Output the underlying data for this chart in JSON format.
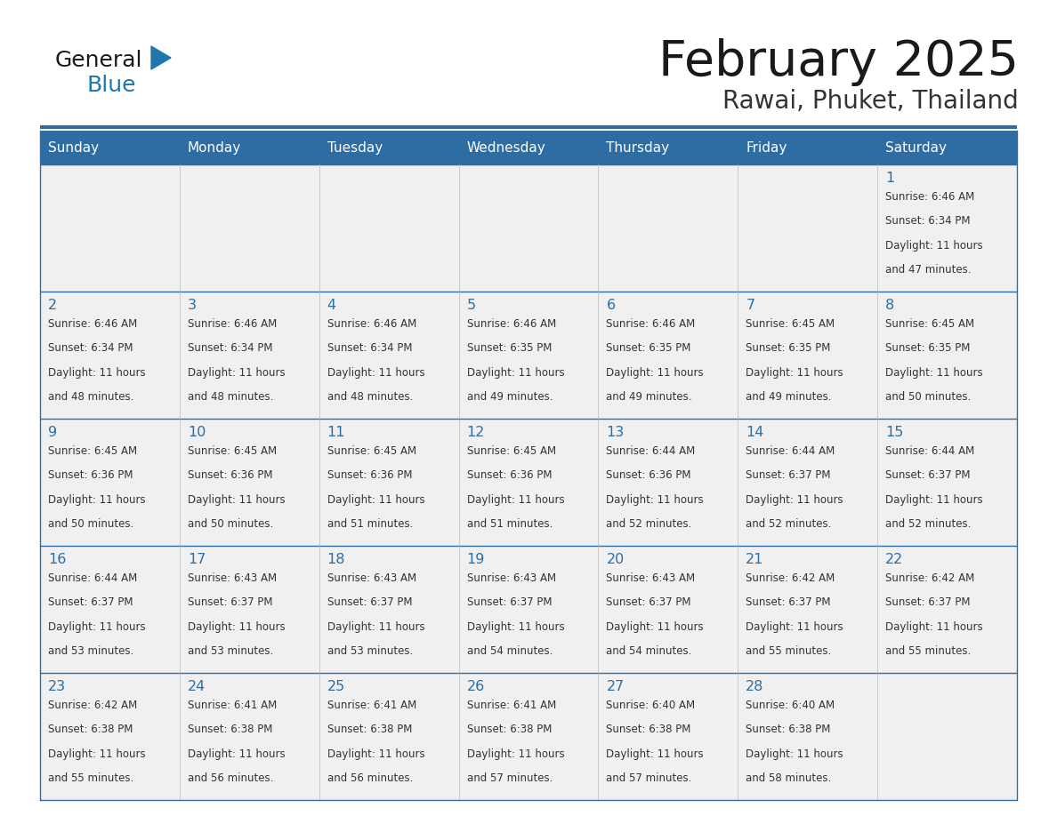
{
  "title": "February 2025",
  "subtitle": "Rawai, Phuket, Thailand",
  "header_bg": "#2E6DA4",
  "header_text_color": "#FFFFFF",
  "cell_bg": "#F0F0F0",
  "border_color": "#2E6DA4",
  "days_of_week": [
    "Sunday",
    "Monday",
    "Tuesday",
    "Wednesday",
    "Thursday",
    "Friday",
    "Saturday"
  ],
  "title_color": "#1a1a1a",
  "subtitle_color": "#333333",
  "day_num_color": "#2E6DA4",
  "cell_text_color": "#333333",
  "logo_text_color": "#1a1a1a",
  "logo_blue_color": "#1a7abf",
  "calendar": [
    [
      null,
      null,
      null,
      null,
      null,
      null,
      {
        "day": 1,
        "sunrise": "6:46 AM",
        "sunset": "6:34 PM",
        "daylight": "11 hours and 47 minutes."
      }
    ],
    [
      {
        "day": 2,
        "sunrise": "6:46 AM",
        "sunset": "6:34 PM",
        "daylight": "11 hours and 48 minutes."
      },
      {
        "day": 3,
        "sunrise": "6:46 AM",
        "sunset": "6:34 PM",
        "daylight": "11 hours and 48 minutes."
      },
      {
        "day": 4,
        "sunrise": "6:46 AM",
        "sunset": "6:34 PM",
        "daylight": "11 hours and 48 minutes."
      },
      {
        "day": 5,
        "sunrise": "6:46 AM",
        "sunset": "6:35 PM",
        "daylight": "11 hours and 49 minutes."
      },
      {
        "day": 6,
        "sunrise": "6:46 AM",
        "sunset": "6:35 PM",
        "daylight": "11 hours and 49 minutes."
      },
      {
        "day": 7,
        "sunrise": "6:45 AM",
        "sunset": "6:35 PM",
        "daylight": "11 hours and 49 minutes."
      },
      {
        "day": 8,
        "sunrise": "6:45 AM",
        "sunset": "6:35 PM",
        "daylight": "11 hours and 50 minutes."
      }
    ],
    [
      {
        "day": 9,
        "sunrise": "6:45 AM",
        "sunset": "6:36 PM",
        "daylight": "11 hours and 50 minutes."
      },
      {
        "day": 10,
        "sunrise": "6:45 AM",
        "sunset": "6:36 PM",
        "daylight": "11 hours and 50 minutes."
      },
      {
        "day": 11,
        "sunrise": "6:45 AM",
        "sunset": "6:36 PM",
        "daylight": "11 hours and 51 minutes."
      },
      {
        "day": 12,
        "sunrise": "6:45 AM",
        "sunset": "6:36 PM",
        "daylight": "11 hours and 51 minutes."
      },
      {
        "day": 13,
        "sunrise": "6:44 AM",
        "sunset": "6:36 PM",
        "daylight": "11 hours and 52 minutes."
      },
      {
        "day": 14,
        "sunrise": "6:44 AM",
        "sunset": "6:37 PM",
        "daylight": "11 hours and 52 minutes."
      },
      {
        "day": 15,
        "sunrise": "6:44 AM",
        "sunset": "6:37 PM",
        "daylight": "11 hours and 52 minutes."
      }
    ],
    [
      {
        "day": 16,
        "sunrise": "6:44 AM",
        "sunset": "6:37 PM",
        "daylight": "11 hours and 53 minutes."
      },
      {
        "day": 17,
        "sunrise": "6:43 AM",
        "sunset": "6:37 PM",
        "daylight": "11 hours and 53 minutes."
      },
      {
        "day": 18,
        "sunrise": "6:43 AM",
        "sunset": "6:37 PM",
        "daylight": "11 hours and 53 minutes."
      },
      {
        "day": 19,
        "sunrise": "6:43 AM",
        "sunset": "6:37 PM",
        "daylight": "11 hours and 54 minutes."
      },
      {
        "day": 20,
        "sunrise": "6:43 AM",
        "sunset": "6:37 PM",
        "daylight": "11 hours and 54 minutes."
      },
      {
        "day": 21,
        "sunrise": "6:42 AM",
        "sunset": "6:37 PM",
        "daylight": "11 hours and 55 minutes."
      },
      {
        "day": 22,
        "sunrise": "6:42 AM",
        "sunset": "6:37 PM",
        "daylight": "11 hours and 55 minutes."
      }
    ],
    [
      {
        "day": 23,
        "sunrise": "6:42 AM",
        "sunset": "6:38 PM",
        "daylight": "11 hours and 55 minutes."
      },
      {
        "day": 24,
        "sunrise": "6:41 AM",
        "sunset": "6:38 PM",
        "daylight": "11 hours and 56 minutes."
      },
      {
        "day": 25,
        "sunrise": "6:41 AM",
        "sunset": "6:38 PM",
        "daylight": "11 hours and 56 minutes."
      },
      {
        "day": 26,
        "sunrise": "6:41 AM",
        "sunset": "6:38 PM",
        "daylight": "11 hours and 57 minutes."
      },
      {
        "day": 27,
        "sunrise": "6:40 AM",
        "sunset": "6:38 PM",
        "daylight": "11 hours and 57 minutes."
      },
      {
        "day": 28,
        "sunrise": "6:40 AM",
        "sunset": "6:38 PM",
        "daylight": "11 hours and 58 minutes."
      },
      null
    ]
  ]
}
